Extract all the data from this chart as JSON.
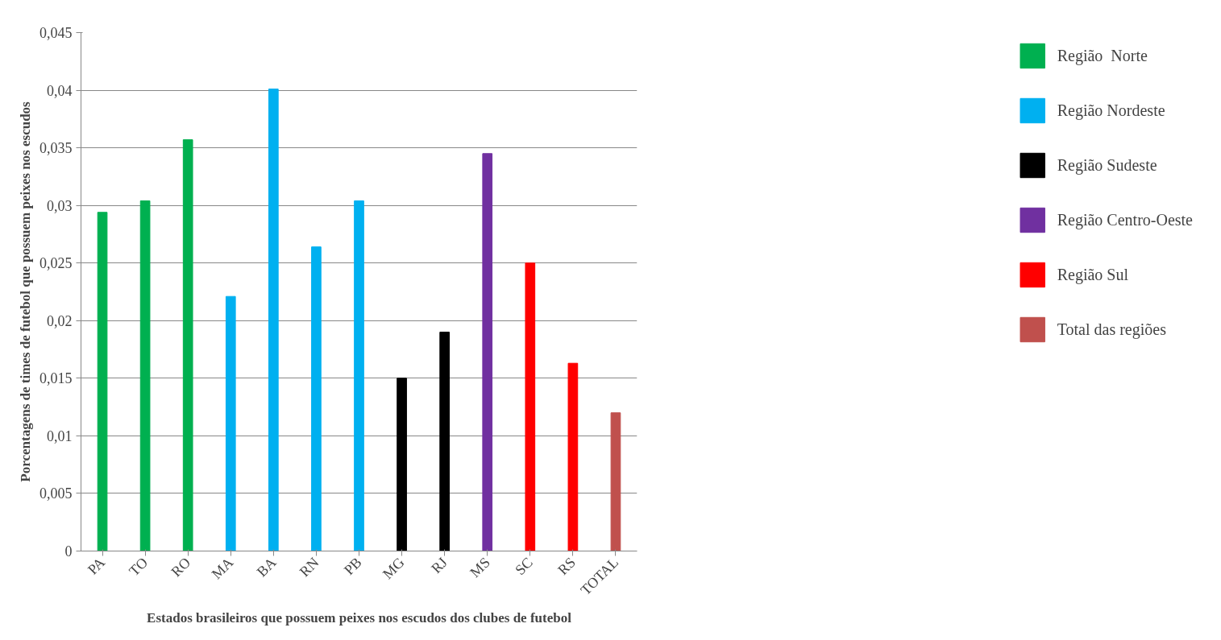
{
  "chart_data": {
    "type": "bar",
    "xlabel": "Estados brasileiros que possuem peixes nos escudos dos clubes de futebol",
    "ylabel": "Porcentagens de times de futebol que possuem peixes nos escudos",
    "categories": [
      "PA",
      "TO",
      "RO",
      "MA",
      "BA",
      "RN",
      "PB",
      "MG",
      "RJ",
      "MS",
      "SC",
      "RS",
      "TOTAL"
    ],
    "series": [
      {
        "name": "Região  Norte",
        "color": "#00b050",
        "values": [
          0.0294,
          0.0304,
          0.0357,
          null,
          null,
          null,
          null,
          null,
          null,
          null,
          null,
          null,
          null
        ]
      },
      {
        "name": "Região Nordeste",
        "color": "#00b0f0",
        "values": [
          null,
          null,
          null,
          0.0221,
          0.0401,
          0.0264,
          0.0304,
          null,
          null,
          null,
          null,
          null,
          null
        ]
      },
      {
        "name": "Região Sudeste",
        "color": "#000000",
        "values": [
          null,
          null,
          null,
          null,
          null,
          null,
          null,
          0.015,
          0.019,
          null,
          null,
          null,
          null
        ]
      },
      {
        "name": "Região Centro-Oeste",
        "color": "#7030a0",
        "values": [
          null,
          null,
          null,
          null,
          null,
          null,
          null,
          null,
          null,
          0.0345,
          null,
          null,
          null
        ]
      },
      {
        "name": "Região Sul",
        "color": "#ff0000",
        "values": [
          null,
          null,
          null,
          null,
          null,
          null,
          null,
          null,
          null,
          null,
          0.025,
          0.0163,
          null
        ]
      },
      {
        "name": "Total das regiões",
        "color": "#c0504d",
        "values": [
          null,
          null,
          null,
          null,
          null,
          null,
          null,
          null,
          null,
          null,
          null,
          null,
          0.012
        ]
      }
    ],
    "ylim": [
      0,
      0.045
    ],
    "yticks": [
      0,
      {
        "value": 0.005,
        "label": "0,005"
      },
      {
        "value": 0.01,
        "label": "0,01"
      },
      {
        "value": 0.015,
        "label": "0,015"
      },
      {
        "value": 0.02,
        "label": "0,02"
      },
      {
        "value": 0.025,
        "label": "0,025"
      },
      {
        "value": 0.03,
        "label": "0,03"
      },
      {
        "value": 0.035,
        "label": "0,035"
      },
      {
        "value": 0.04,
        "label": "0,04"
      },
      {
        "value": 0.045,
        "label": "0,045"
      }
    ],
    "grid": "y",
    "legend": "right"
  }
}
